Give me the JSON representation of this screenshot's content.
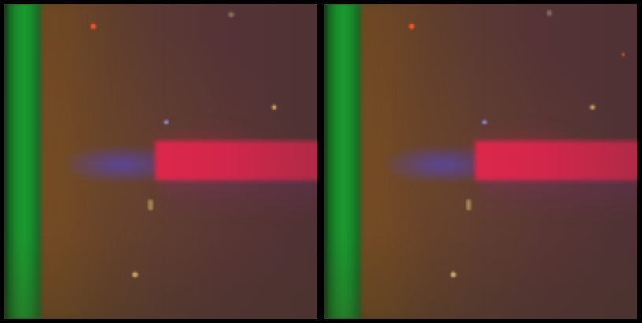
{
  "image": {
    "panels": [
      {
        "id": "left",
        "elements": [
          "green-band",
          "blue-beam",
          "red-beam",
          "specks"
        ]
      },
      {
        "id": "right",
        "elements": [
          "green-band",
          "blue-beam",
          "red-beam",
          "specks"
        ]
      }
    ],
    "colors": {
      "background": "#000000",
      "green_band": "#1b9a30",
      "red_beam": "#e2274c",
      "blue_beam": "#5a46aa",
      "ambient": "#553336"
    }
  }
}
